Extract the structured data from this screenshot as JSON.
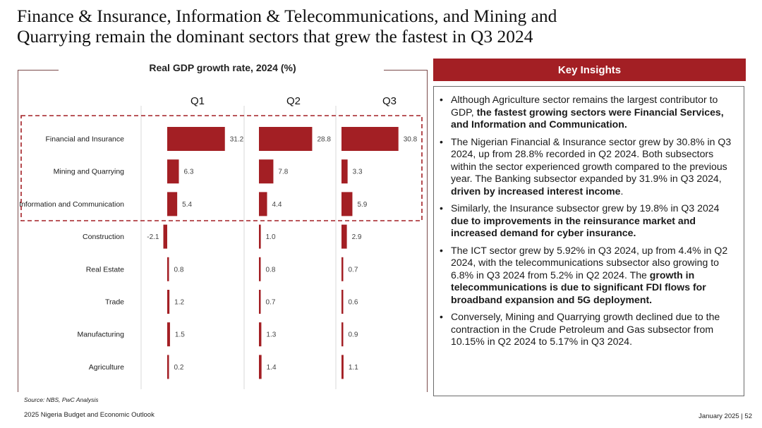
{
  "slide": {
    "title_line1": "Finance & Insurance, Information & Telecommunications, and Mining and",
    "title_line2": "Quarrying remain the dominant sectors that grew the fastest in Q3 2024"
  },
  "chart_data": {
    "type": "bar",
    "orientation": "horizontal",
    "title": "Real GDP growth rate, 2024 (%)",
    "panels": [
      "Q1",
      "Q2",
      "Q3"
    ],
    "categories": [
      "Financial and Insurance",
      "Mining and Quarrying",
      "Information and Communication",
      "Construction",
      "Real Estate",
      "Trade",
      "Manufacturing",
      "Agriculture"
    ],
    "series": [
      {
        "name": "Q1",
        "values": [
          31.2,
          6.3,
          5.4,
          -2.1,
          0.8,
          1.2,
          1.5,
          0.2
        ]
      },
      {
        "name": "Q2",
        "values": [
          28.8,
          7.8,
          4.4,
          1.0,
          0.8,
          0.7,
          1.3,
          1.4
        ]
      },
      {
        "name": "Q3",
        "values": [
          30.8,
          3.3,
          5.9,
          2.9,
          0.7,
          0.6,
          0.9,
          1.1
        ]
      }
    ],
    "value_labels": [
      [
        "31.2",
        "6.3",
        "5.4",
        "-2.1",
        "0.8",
        "1.2",
        "1.5",
        "0.2"
      ],
      [
        "28.8",
        "7.8",
        "4.4",
        "1.0",
        "0.8",
        "0.7",
        "1.3",
        "1.4"
      ],
      [
        "30.8",
        "3.3",
        "5.9",
        "2.9",
        "0.7",
        "0.6",
        "0.9",
        "1.1"
      ]
    ],
    "highlighted_categories": [
      "Financial and Insurance",
      "Mining and Quarrying",
      "Information and Communication"
    ],
    "xlabel": "",
    "ylabel": "",
    "legend": "none",
    "grid": false
  },
  "colors": {
    "bar": "#a31f24",
    "highlight_border": "#a31f24",
    "header_bg": "#a31f24"
  },
  "insights": {
    "header": "Key Insights",
    "items": [
      {
        "text": "Although Agriculture sector remains the largest contributor to GDP, ",
        "bold": "the fastest growing sectors were Financial Services, and Information and Communication.",
        "tail": ""
      },
      {
        "text": "The Nigerian Financial & Insurance sector grew by 30.8% in Q3 2024, up from 28.8% recorded in Q2 2024. Both subsectors within the sector experienced growth compared to the previous year. The Banking subsector expanded by 31.9% in Q3 2024, ",
        "bold": "driven by increased interest income",
        "tail": "."
      },
      {
        "text": "Similarly, the Insurance subsector grew by 19.8% in Q3 2024 ",
        "bold": "due to improvements in the reinsurance market and increased demand for cyber insurance.",
        "tail": ""
      },
      {
        "text": "The ICT sector grew by 5.92% in Q3 2024, up from 4.4% in Q2 2024, with the telecommunications subsector also growing to 6.8% in Q3 2024 from 5.2% in Q2 2024. The ",
        "bold": "growth in telecommunications is due to significant FDI flows for broadband expansion and 5G deployment.",
        "tail": ""
      },
      {
        "text": "Conversely, Mining and Quarrying growth declined due to the contraction in the Crude Petroleum and Gas subsector from 10.15% in Q2 2024 to 5.17% in Q3 2024.",
        "bold": "",
        "tail": ""
      }
    ]
  },
  "footer": {
    "source": "Source: NBS, PwC Analysis",
    "left": "2025 Nigeria Budget and Economic Outlook",
    "right": "January 2025 | 52"
  }
}
